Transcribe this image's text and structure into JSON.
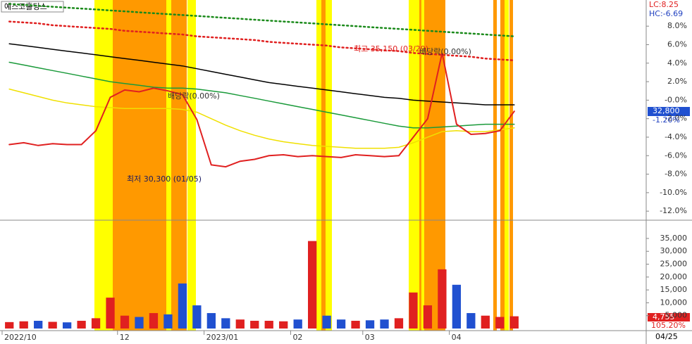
{
  "chart_data": [
    {
      "type": "line",
      "title": "예스코홀딩스",
      "lc_label": "LC:8.25",
      "hc_label": "HC:-6.69",
      "last_price_label": "32,800",
      "last_value_label": "-1.20%",
      "ylim": [
        -12.9,
        10.6
      ],
      "yticks": [
        {
          "value": 8,
          "label": "8.0%"
        },
        {
          "value": 6,
          "label": "6.0%"
        },
        {
          "value": 4,
          "label": "4.0%"
        },
        {
          "value": 2,
          "label": "2.0%"
        },
        {
          "value": 0,
          "label": "-0.0%"
        },
        {
          "value": -2,
          "label": "-2.0%"
        },
        {
          "value": -4,
          "label": "-4.0%"
        },
        {
          "value": -6,
          "label": "-6.0%"
        },
        {
          "value": -8,
          "label": "-8.0%"
        },
        {
          "value": -10,
          "label": "-10.0%"
        },
        {
          "value": -12,
          "label": "-12.0%"
        }
      ],
      "annotations": [
        "최고 35,150 (03/29)",
        "배당락(0.00%)",
        "배당락(0.00%)",
        "최저 30,300 (01/05)"
      ],
      "series": [
        {
          "name": "envelope-top",
          "color": "#1a8a1a",
          "style": "dotted",
          "values": [
            10.4,
            10.3,
            10.2,
            10.1,
            10.0,
            9.9,
            9.8,
            9.7,
            9.6,
            9.5,
            9.4,
            9.3,
            9.2,
            9.1,
            9.0,
            8.9,
            8.8,
            8.7,
            8.6,
            8.5,
            8.4,
            8.3,
            8.2,
            8.1,
            8.0,
            7.9,
            7.8,
            7.7,
            7.6,
            7.5,
            7.4,
            7.3,
            7.2,
            7.1,
            7.0,
            6.9
          ]
        },
        {
          "name": "envelope-mid",
          "color": "#e02020",
          "style": "dotted",
          "values": [
            8.5,
            8.4,
            8.3,
            8.1,
            8.0,
            7.9,
            7.8,
            7.7,
            7.5,
            7.4,
            7.3,
            7.2,
            7.1,
            6.9,
            6.8,
            6.7,
            6.6,
            6.5,
            6.3,
            6.2,
            6.1,
            6.0,
            5.9,
            5.7,
            5.6,
            5.5,
            5.4,
            5.3,
            5.1,
            5.0,
            4.9,
            4.8,
            4.7,
            4.5,
            4.4,
            4.3
          ]
        },
        {
          "name": "ma-long",
          "color": "#000000",
          "style": "solid",
          "values": [
            6.1,
            5.9,
            5.7,
            5.5,
            5.3,
            5.1,
            4.9,
            4.7,
            4.5,
            4.3,
            4.1,
            3.9,
            3.7,
            3.4,
            3.1,
            2.8,
            2.5,
            2.2,
            1.9,
            1.7,
            1.5,
            1.3,
            1.1,
            0.9,
            0.7,
            0.5,
            0.3,
            0.2,
            0.0,
            -0.1,
            -0.2,
            -0.3,
            -0.4,
            -0.5,
            -0.5,
            -0.5
          ]
        },
        {
          "name": "ma-mid",
          "color": "#1a9a3a",
          "style": "solid",
          "values": [
            4.1,
            3.8,
            3.5,
            3.2,
            2.9,
            2.6,
            2.3,
            2.0,
            1.8,
            1.6,
            1.4,
            1.3,
            1.3,
            1.2,
            1.0,
            0.8,
            0.5,
            0.2,
            -0.1,
            -0.4,
            -0.7,
            -1.0,
            -1.3,
            -1.6,
            -1.9,
            -2.2,
            -2.5,
            -2.8,
            -3.0,
            -3.0,
            -2.9,
            -2.8,
            -2.7,
            -2.6,
            -2.6,
            -2.6
          ]
        },
        {
          "name": "ma-short",
          "color": "#f0e000",
          "style": "solid",
          "values": [
            1.2,
            0.8,
            0.4,
            0.0,
            -0.3,
            -0.5,
            -0.7,
            -0.8,
            -0.9,
            -0.9,
            -0.9,
            -0.9,
            -1.0,
            -1.3,
            -2.0,
            -2.7,
            -3.3,
            -3.8,
            -4.2,
            -4.5,
            -4.7,
            -4.9,
            -5.0,
            -5.1,
            -5.2,
            -5.2,
            -5.2,
            -5.1,
            -4.6,
            -4.0,
            -3.4,
            -3.3,
            -3.4,
            -3.4,
            -3.2,
            -3.0
          ]
        },
        {
          "name": "close",
          "color": "#e02020",
          "style": "solid",
          "values": [
            -4.8,
            -4.6,
            -4.9,
            -4.7,
            -4.8,
            -4.8,
            -3.3,
            0.3,
            1.1,
            0.9,
            1.3,
            1.0,
            0.6,
            -2.1,
            -7.0,
            -7.2,
            -6.6,
            -6.4,
            -6.0,
            -5.9,
            -6.1,
            -6.0,
            -6.1,
            -6.2,
            -5.9,
            -6.0,
            -6.1,
            -6.0,
            -4.0,
            -2.0,
            5.1,
            -2.6,
            -3.7,
            -3.6,
            -3.3,
            -1.2
          ]
        }
      ]
    },
    {
      "type": "bar",
      "up_color": "#e02020",
      "down_color": "#2050d0",
      "categories": [
        "2022/10",
        null,
        null,
        null,
        null,
        null,
        null,
        null,
        "12",
        null,
        null,
        null,
        null,
        null,
        "2023/01",
        null,
        null,
        null,
        null,
        null,
        "02",
        null,
        null,
        null,
        null,
        "03",
        null,
        null,
        null,
        null,
        null,
        "04",
        null,
        null,
        null,
        null
      ],
      "last_date": "04/25",
      "last_value_label": "4,755",
      "ratio_label": "105.20%",
      "ylim": [
        0,
        41000
      ],
      "yticks": [
        {
          "value": 35000,
          "label": "35,000"
        },
        {
          "value": 30000,
          "label": "30,000"
        },
        {
          "value": 25000,
          "label": "25,000"
        },
        {
          "value": 20000,
          "label": "20,000"
        },
        {
          "value": 15000,
          "label": "15,000"
        },
        {
          "value": 10000,
          "label": "10,000"
        },
        {
          "value": 5000,
          "label": "5,000"
        }
      ],
      "values": [
        2500,
        2800,
        3000,
        2600,
        2400,
        3000,
        4000,
        12000,
        5000,
        4500,
        6000,
        5500,
        17500,
        9000,
        6000,
        4000,
        3500,
        3000,
        3000,
        2800,
        3500,
        34000,
        5000,
        3500,
        3000,
        3200,
        3500,
        4000,
        14000,
        9000,
        23000,
        17000,
        6000,
        5000,
        4500,
        4755
      ]
    }
  ]
}
